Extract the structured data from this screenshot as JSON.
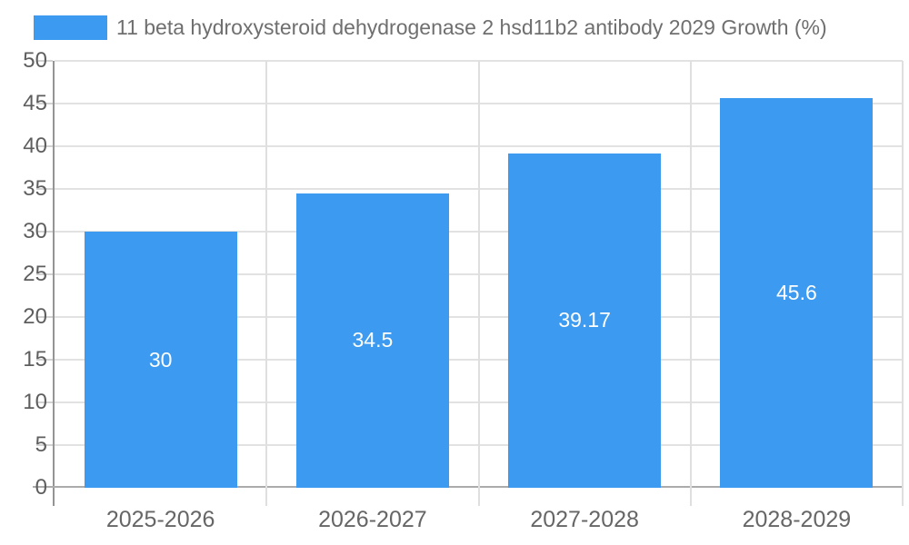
{
  "legend": {
    "label": "11 beta hydroxysteroid dehydrogenase 2 hsd11b2 antibody 2029 Growth (%)"
  },
  "chart_data": {
    "type": "bar",
    "title": "11 beta hydroxysteroid dehydrogenase 2 hsd11b2 antibody 2029 Growth (%)",
    "categories": [
      "2025-2026",
      "2026-2027",
      "2027-2028",
      "2028-2029"
    ],
    "values": [
      30,
      34.5,
      39.17,
      45.6
    ],
    "bar_labels": [
      "30",
      "34.5",
      "39.17",
      "45.6"
    ],
    "xlabel": "",
    "ylabel": "",
    "ylim": [
      0,
      50
    ],
    "yticks": [
      0,
      5,
      10,
      15,
      20,
      25,
      30,
      35,
      40,
      45,
      50
    ],
    "grid": true,
    "legend_position": "top-left",
    "bar_color": "#3C9AF0",
    "bar_label_color": "#FFFFFF"
  }
}
